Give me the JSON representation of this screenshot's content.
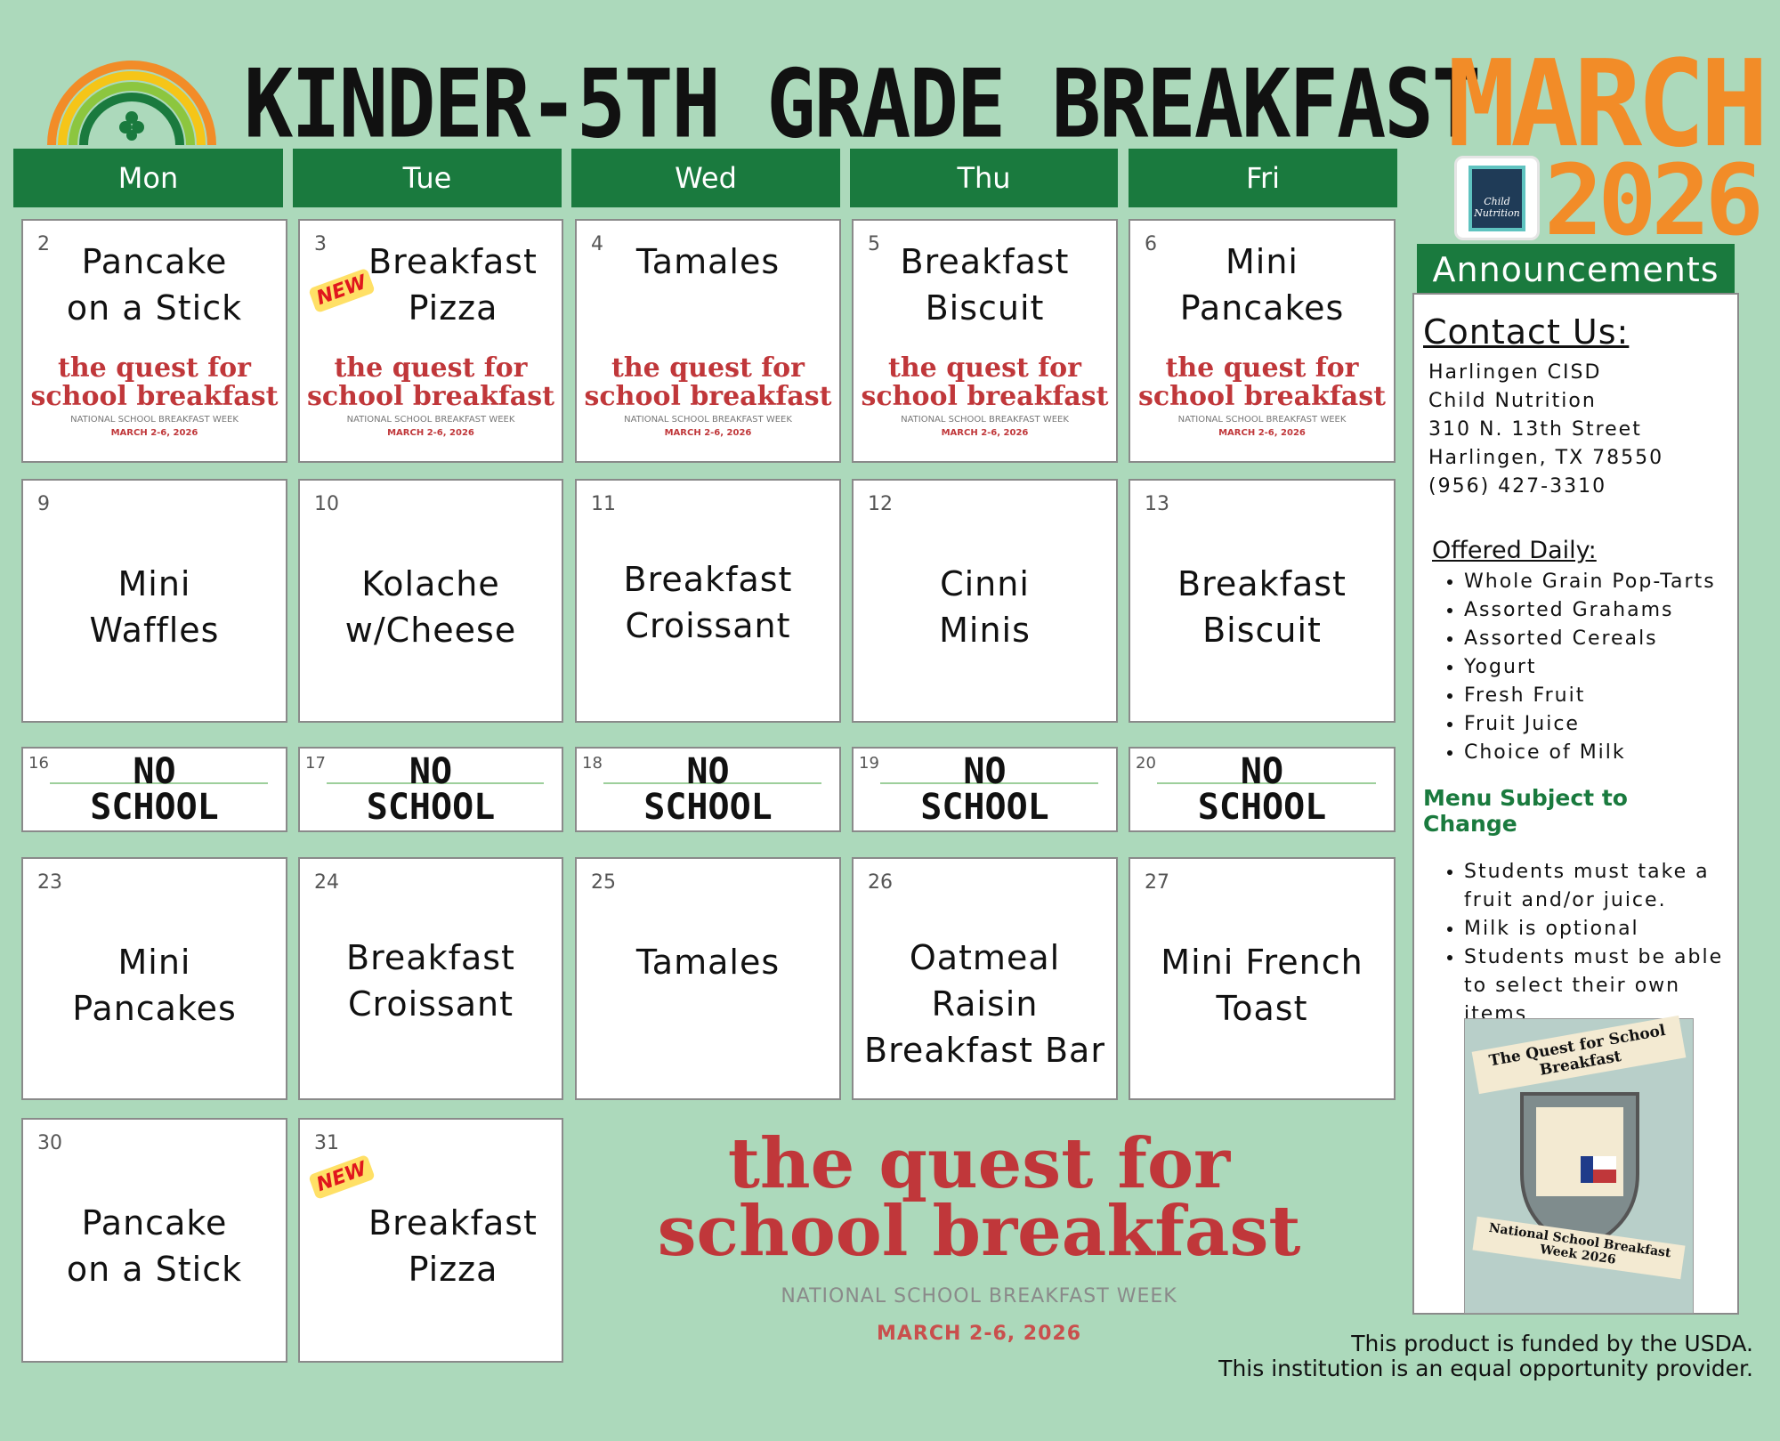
{
  "title": "KINDER-5TH GRADE BREAKFAST",
  "month": "MARCH",
  "year": "2026",
  "logo_text": "Child Nutrition",
  "colors": {
    "background": "#acd9bb",
    "header_green": "#1a7a3e",
    "month_orange": "#f28c28",
    "quest_red": "#c0373a"
  },
  "days": [
    "Mon",
    "Tue",
    "Wed",
    "Thu",
    "Fri"
  ],
  "quest": {
    "line1": "the quest for",
    "line2": "school breakfast",
    "week": "NATIONAL SCHOOL BREAKFAST WEEK",
    "dates": "MARCH 2-6, 2026"
  },
  "new_badge": "NEW",
  "no_school": {
    "line1": "NO",
    "line2": "SCHOOL"
  },
  "weeks": [
    [
      {
        "day": "2",
        "meal": "Pancake\non a Stick"
      },
      {
        "day": "3",
        "meal": "Breakfast\nPizza",
        "new": true
      },
      {
        "day": "4",
        "meal": "Tamales"
      },
      {
        "day": "5",
        "meal": "Breakfast\nBiscuit"
      },
      {
        "day": "6",
        "meal": "Mini\nPancakes"
      }
    ],
    [
      {
        "day": "9",
        "meal": "Mini\nWaffles"
      },
      {
        "day": "10",
        "meal": "Kolache\nw/Cheese"
      },
      {
        "day": "11",
        "meal": "Breakfast\nCroissant"
      },
      {
        "day": "12",
        "meal": "Cinni\nMinis"
      },
      {
        "day": "13",
        "meal": "Breakfast\nBiscuit"
      }
    ],
    [
      {
        "day": "16"
      },
      {
        "day": "17"
      },
      {
        "day": "18"
      },
      {
        "day": "19"
      },
      {
        "day": "20"
      }
    ],
    [
      {
        "day": "23",
        "meal": "Mini\nPancakes"
      },
      {
        "day": "24",
        "meal": "Breakfast\nCroissant"
      },
      {
        "day": "25",
        "meal": "Tamales"
      },
      {
        "day": "26",
        "meal": "Oatmeal Raisin\nBreakfast Bar"
      },
      {
        "day": "27",
        "meal": "Mini French\nToast"
      }
    ],
    [
      {
        "day": "30",
        "meal": "Pancake\non a Stick"
      },
      {
        "day": "31",
        "meal": "Breakfast\nPizza",
        "new": true
      }
    ]
  ],
  "announcements": {
    "header": "Announcements",
    "contact_title": "Contact Us:",
    "contact": [
      "Harlingen CISD",
      "Child Nutrition",
      "310 N. 13th Street",
      "Harlingen, TX 78550",
      "(956) 427-3310"
    ],
    "offered_title": "Offered Daily:",
    "offered": [
      "Whole Grain Pop-Tarts",
      "Assorted Grahams",
      "Assorted Cereals",
      "Yogurt",
      "Fresh Fruit",
      "Fruit Juice",
      "Choice of Milk"
    ],
    "change_title": "Menu Subject to Change",
    "rules": [
      "Students must take a fruit and/or juice.",
      "Milk is optional",
      "Students must be able to select their own items"
    ],
    "poster_title": "The Quest for School Breakfast",
    "poster_footer": "National School Breakfast Week 2026"
  },
  "footer": {
    "line1": "This product is funded by the USDA.",
    "line2": "This institution is an equal opportunity provider."
  }
}
